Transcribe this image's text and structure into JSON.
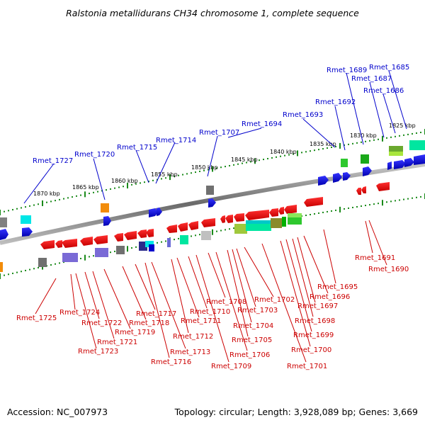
{
  "title": "Ralstonia metallidurans CH34 chromosome 1, complete sequence",
  "footer": {
    "accession": "Accession: NC_007973",
    "info": "Topology: circular; Length: 3,928,089 bp; Genes: 3,669"
  },
  "colors": {
    "forward_label": "#0000cc",
    "reverse_label": "#cc0000",
    "forward_gene": "#0000ee",
    "reverse_gene": "#ee0000",
    "tick": "#1a8a1a",
    "backbone": "#8a8a8a"
  },
  "kbp_ticks": [
    "1870 kbp",
    "1865 kbp",
    "1860 kbp",
    "1855 kbp",
    "1850 kbp",
    "1845 kbp",
    "1840 kbp",
    "1835 kbp",
    "1830 kbp",
    "1825 kbp"
  ],
  "forward_labels": [
    "Rmet_1727",
    "Rmet_1720",
    "Rmet_1715",
    "Rmet_1714",
    "Rmet_1707",
    "Rmet_1694",
    "Rmet_1693",
    "Rmet_1692",
    "Rmet_1689",
    "Rmet_1687",
    "Rmet_1686",
    "Rmet_1685"
  ],
  "reverse_labels": [
    "Rmet_1725",
    "Rmet_1724",
    "Rmet_1722",
    "Rmet_1721",
    "Rmet_1723",
    "Rmet_1719",
    "Rmet_1718",
    "Rmet_1717",
    "Rmet_1716",
    "Rmet_1713",
    "Rmet_1712",
    "Rmet_1711",
    "Rmet_1710",
    "Rmet_1709",
    "Rmet_1708",
    "Rmet_1706",
    "Rmet_1705",
    "Rmet_1704",
    "Rmet_1703",
    "Rmet_1702",
    "Rmet_1701",
    "Rmet_1700",
    "Rmet_1699",
    "Rmet_1698",
    "Rmet_1697",
    "Rmet_1696",
    "Rmet_1695",
    "Rmet_1691",
    "Rmet_1690"
  ]
}
